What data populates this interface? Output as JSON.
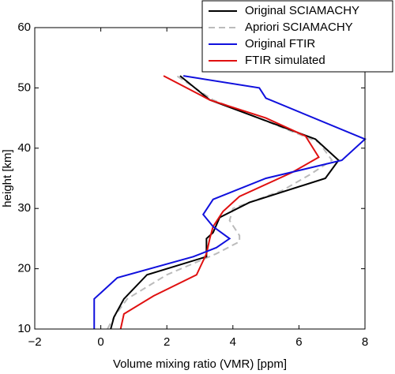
{
  "chart_data": {
    "type": "line",
    "xlabel": "Volume mixing ratio (VMR) [ppm]",
    "ylabel": "height [km]",
    "xlim": [
      -2,
      8
    ],
    "ylim": [
      10,
      60
    ],
    "xticks": [
      {
        "value": -2,
        "label": "−2"
      },
      0,
      2,
      4,
      6,
      8
    ],
    "yticks": [
      10,
      20,
      30,
      40,
      50,
      60
    ],
    "legend": "upper right",
    "series": [
      {
        "name": "Original SCIAMACHY",
        "color": "#000000",
        "dash": "solid",
        "x": [
          2.4,
          3.3,
          6.5,
          7.2,
          6.8,
          4.5,
          3.6,
          3.4,
          3.2,
          3.2,
          1.4,
          0.7,
          0.4,
          0.3
        ],
        "y": [
          52,
          48,
          41.5,
          38,
          35,
          31,
          28.5,
          26,
          25,
          22,
          19,
          15,
          12,
          10
        ]
      },
      {
        "name": "Apriori SCIAMACHY",
        "color": "#bbbbbb",
        "dash": "dashed",
        "x": [
          0.2,
          0.4,
          0.8,
          2.0,
          3.5,
          4.2,
          4.2,
          3.9,
          4.0,
          5.5,
          6.3,
          7.0,
          6.6,
          3.4,
          2.3
        ],
        "y": [
          10,
          12,
          15,
          19,
          22.5,
          24.5,
          25.5,
          28,
          30,
          33,
          35.5,
          38,
          41,
          48,
          52
        ]
      },
      {
        "name": "Original FTIR",
        "color": "#1010dd",
        "dash": "solid",
        "x": [
          2.5,
          4.8,
          5.0,
          8.0,
          7.3,
          5.0,
          3.4,
          3.1,
          3.4,
          3.9,
          3.5,
          2.8,
          0.5,
          -0.2,
          -0.2,
          -0.2
        ],
        "y": [
          52,
          50,
          48.3,
          41.5,
          38,
          35,
          31.5,
          29,
          27,
          25,
          23.5,
          22,
          18.5,
          15,
          12,
          10
        ]
      },
      {
        "name": "FTIR simulated",
        "color": "#e01010",
        "dash": "solid",
        "x": [
          1.9,
          3.3,
          5.0,
          6.2,
          6.6,
          5.8,
          4.2,
          3.7,
          3.4,
          3.3,
          3.2,
          2.9,
          1.6,
          0.7,
          0.6
        ],
        "y": [
          52,
          48,
          45,
          42,
          38.5,
          36,
          32,
          29.5,
          27,
          25,
          22.5,
          19,
          15.5,
          12.5,
          10
        ]
      }
    ]
  }
}
